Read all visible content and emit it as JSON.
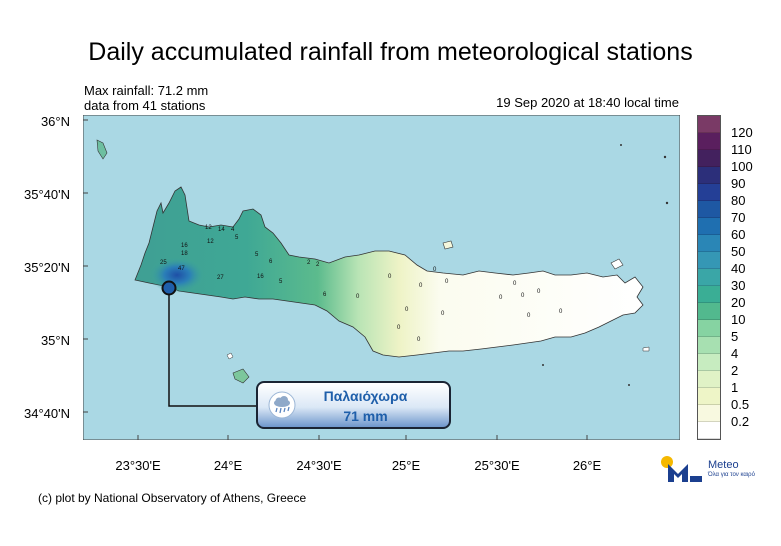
{
  "title": "Daily accumulated rainfall from meteorological stations",
  "info": {
    "max_rainfall": "Max rainfall: 71.2 mm",
    "stations": "data from 41 stations",
    "timestamp": "19 Sep 2020 at 18:40 local time"
  },
  "axes": {
    "y_labels": [
      "36°N",
      "35°40'N",
      "35°20'N",
      "35°N",
      "34°40'N"
    ],
    "x_labels": [
      "23°30'E",
      "24°E",
      "24°30'E",
      "25°E",
      "25°30'E",
      "26°E"
    ]
  },
  "legend": {
    "labels": [
      "120",
      "110",
      "100",
      "90",
      "80",
      "70",
      "60",
      "50",
      "40",
      "30",
      "20",
      "10",
      "5",
      "4",
      "2",
      "1",
      "0.5",
      "0.2"
    ],
    "colors": [
      "#7a3a66",
      "#5a1f5e",
      "#43215e",
      "#2c2f7a",
      "#243f96",
      "#1e58a3",
      "#1f6fb0",
      "#2a86b6",
      "#3597b5",
      "#3aa6a7",
      "#3aae95",
      "#52b98e",
      "#86d3a2",
      "#a7e0b1",
      "#c7ecc0",
      "#e0f2c6",
      "#eef5c7",
      "#f8f9e0",
      "#ffffff"
    ]
  },
  "map": {
    "sea_color": "#aad8e4",
    "region": "Crete",
    "station_labels": [
      "12",
      "14",
      "4",
      "5",
      "16",
      "18",
      "12",
      "25",
      "47",
      "27",
      "5",
      "6",
      "16",
      "5",
      "2",
      "2",
      "6",
      "0",
      "0",
      "0",
      "0",
      "0",
      "0",
      "0",
      "0",
      "0",
      "0",
      "0",
      "0",
      "0",
      "0",
      "0"
    ]
  },
  "highlight": {
    "station_name": "Παλαιόχωρα",
    "value": "71 mm",
    "icon": "rain-cloud-icon"
  },
  "credit": "(c) plot by National Observatory of Athens, Greece",
  "logo": {
    "name": "Meteo",
    "tagline": "Όλα για τον καιρό",
    "icon": "meteo-sun-m-logo"
  }
}
